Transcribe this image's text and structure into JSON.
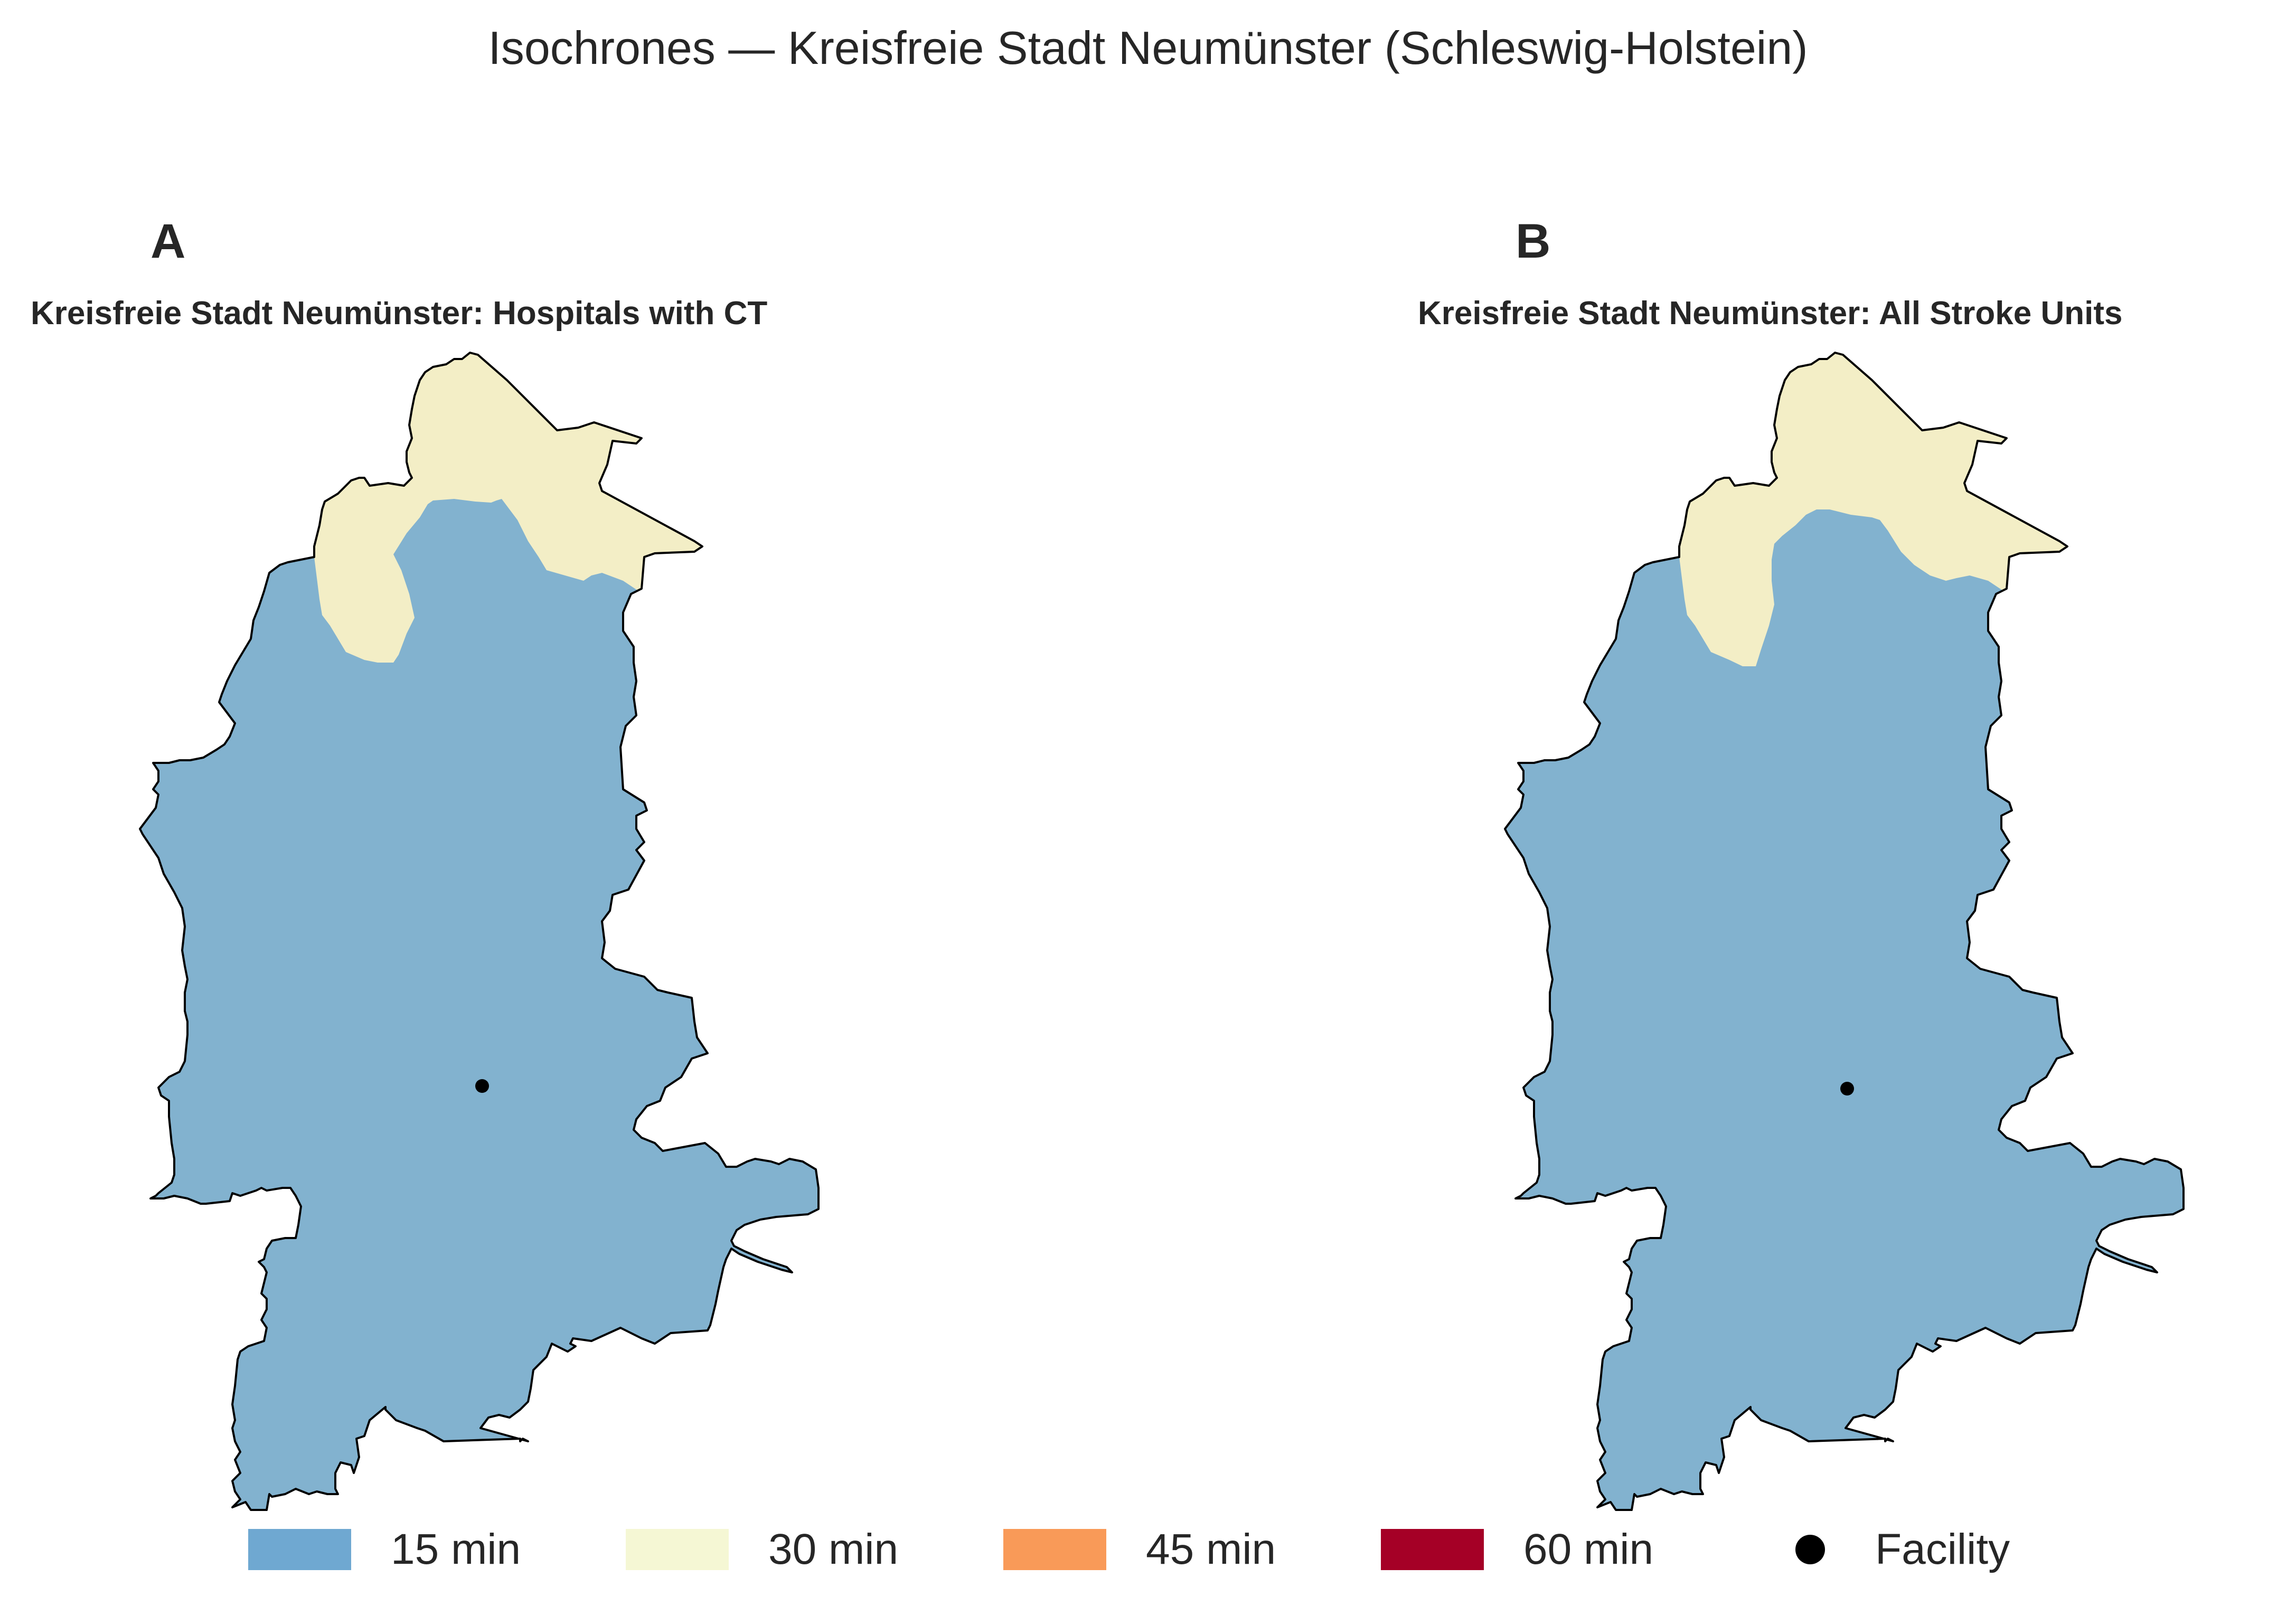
{
  "title": "Isochrones — Kreisfreie Stadt Neumünster (Schleswig-Holstein)",
  "panels": [
    {
      "letter": "A",
      "subtitle": "Kreisfreie Stadt Neumünster: Hospitals with CT"
    },
    {
      "letter": "B",
      "subtitle": "Kreisfreie Stadt Neumünster: All Stroke Units"
    }
  ],
  "legend": [
    {
      "label": "15 min",
      "color": "#6fa8d1"
    },
    {
      "label": "30 min",
      "color": "#f5f7d4"
    },
    {
      "label": "45 min",
      "color": "#f99a58"
    },
    {
      "label": "60 min",
      "color": "#a50026"
    },
    {
      "label": "Facility",
      "color": "#000000",
      "icon": "facility-dot-icon"
    }
  ],
  "colors": {
    "zone_15": "#82b2cf",
    "zone_30": "#f3eec6",
    "outline": "#000000"
  }
}
